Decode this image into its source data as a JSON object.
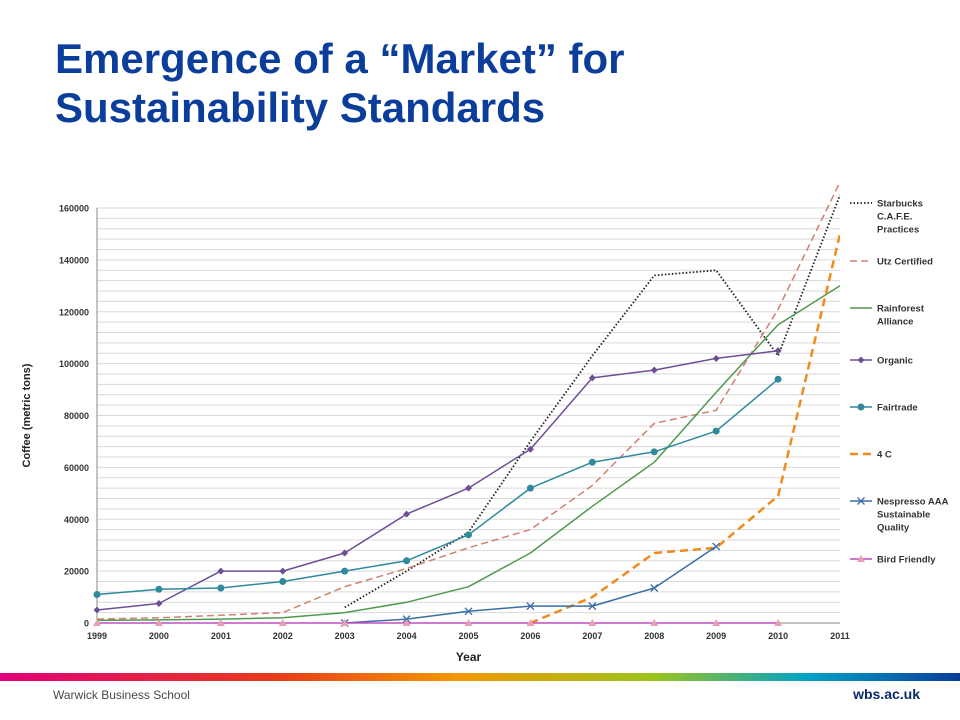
{
  "slide": {
    "title_line1": "Emergence of a “Market” for",
    "title_line2": "Sustainability Standards",
    "footer_left": "Warwick Business School",
    "footer_right": "wbs.ac.uk"
  },
  "colors": {
    "title": "#0b3d9a",
    "footer_gradient": [
      "#e2007a",
      "#e8391c",
      "#f29a00",
      "#9cc31c",
      "#00a3c8",
      "#0b3d9a"
    ]
  },
  "chart_data": {
    "type": "line",
    "title": "",
    "xlabel": "Year",
    "ylabel": "Coffee (metric tons)",
    "x": [
      "1999",
      "2000",
      "2001",
      "2002",
      "2003",
      "2004",
      "2005",
      "2006",
      "2007",
      "2008",
      "2009",
      "2010",
      "2011"
    ],
    "x_tick_labels": [
      "1999",
      "2000",
      "2001",
      "2002",
      "2003",
      "2004",
      "2005",
      "2006",
      "2007",
      "2008",
      "2009",
      "2010",
      "2011"
    ],
    "ylim": [
      0,
      160000
    ],
    "y_ticks": [
      0,
      20000,
      40000,
      60000,
      80000,
      100000,
      120000,
      140000,
      160000
    ],
    "grid": true,
    "legend_position": "right",
    "series": [
      {
        "name": "Starbucks C.A.F.E. Practices",
        "legend_lines": [
          "Starbucks",
          "C.A.F.E.",
          "Practices"
        ],
        "color": "#222222",
        "style": "dotted",
        "marker": "none",
        "values": [
          null,
          null,
          null,
          null,
          6000,
          20000,
          35000,
          70000,
          103000,
          134000,
          136000,
          103000,
          165000
        ]
      },
      {
        "name": "Utz Certified",
        "legend_lines": [
          "Utz Certified"
        ],
        "color": "#d08070",
        "style": "dashed",
        "marker": "none",
        "values": [
          1500,
          2000,
          3000,
          4000,
          14000,
          21000,
          29000,
          36000,
          53000,
          77000,
          82000,
          121000,
          170000
        ]
      },
      {
        "name": "Rainforest Alliance",
        "legend_lines": [
          "Rainforest",
          "Alliance"
        ],
        "color": "#4e9a4e",
        "style": "solid",
        "marker": "none",
        "values": [
          1000,
          1200,
          1500,
          2000,
          4000,
          8000,
          14000,
          27000,
          45000,
          62000,
          89000,
          115000,
          130000
        ]
      },
      {
        "name": "Organic",
        "legend_lines": [
          "Organic"
        ],
        "color": "#6e4f96",
        "style": "solid",
        "marker": "diamond",
        "values": [
          5000,
          7500,
          20000,
          20000,
          27000,
          42000,
          52000,
          67000,
          94500,
          97500,
          102000,
          105000,
          null
        ]
      },
      {
        "name": "Fairtrade",
        "legend_lines": [
          "Fairtrade"
        ],
        "color": "#2f8a9c",
        "style": "solid",
        "marker": "circle",
        "values": [
          11000,
          13000,
          13500,
          16000,
          20000,
          24000,
          34000,
          52000,
          62000,
          66000,
          74000,
          94000,
          null
        ]
      },
      {
        "name": "4 C",
        "legend_lines": [
          "4 C"
        ],
        "color": "#f08a1c",
        "style": "dashed-bold",
        "marker": "none",
        "values": [
          null,
          null,
          null,
          null,
          null,
          null,
          null,
          0,
          10000,
          27000,
          29000,
          49000,
          150000
        ]
      },
      {
        "name": "Nespresso AAA Sustainable Quality",
        "legend_lines": [
          "Nespresso AAA",
          "Sustainable",
          "Quality"
        ],
        "color": "#3b6ea5",
        "style": "solid",
        "marker": "x",
        "values": [
          null,
          null,
          null,
          null,
          0,
          1500,
          4500,
          6500,
          6500,
          13500,
          29500,
          null,
          null
        ]
      },
      {
        "name": "Bird Friendly",
        "legend_lines": [
          "Bird Friendly"
        ],
        "color": "#c24ec2",
        "marker_color": "#e8a0b0",
        "style": "solid",
        "marker": "triangle",
        "values": [
          0,
          0,
          0,
          0,
          0,
          0,
          0,
          0,
          0,
          0,
          0,
          0,
          null
        ]
      }
    ]
  }
}
